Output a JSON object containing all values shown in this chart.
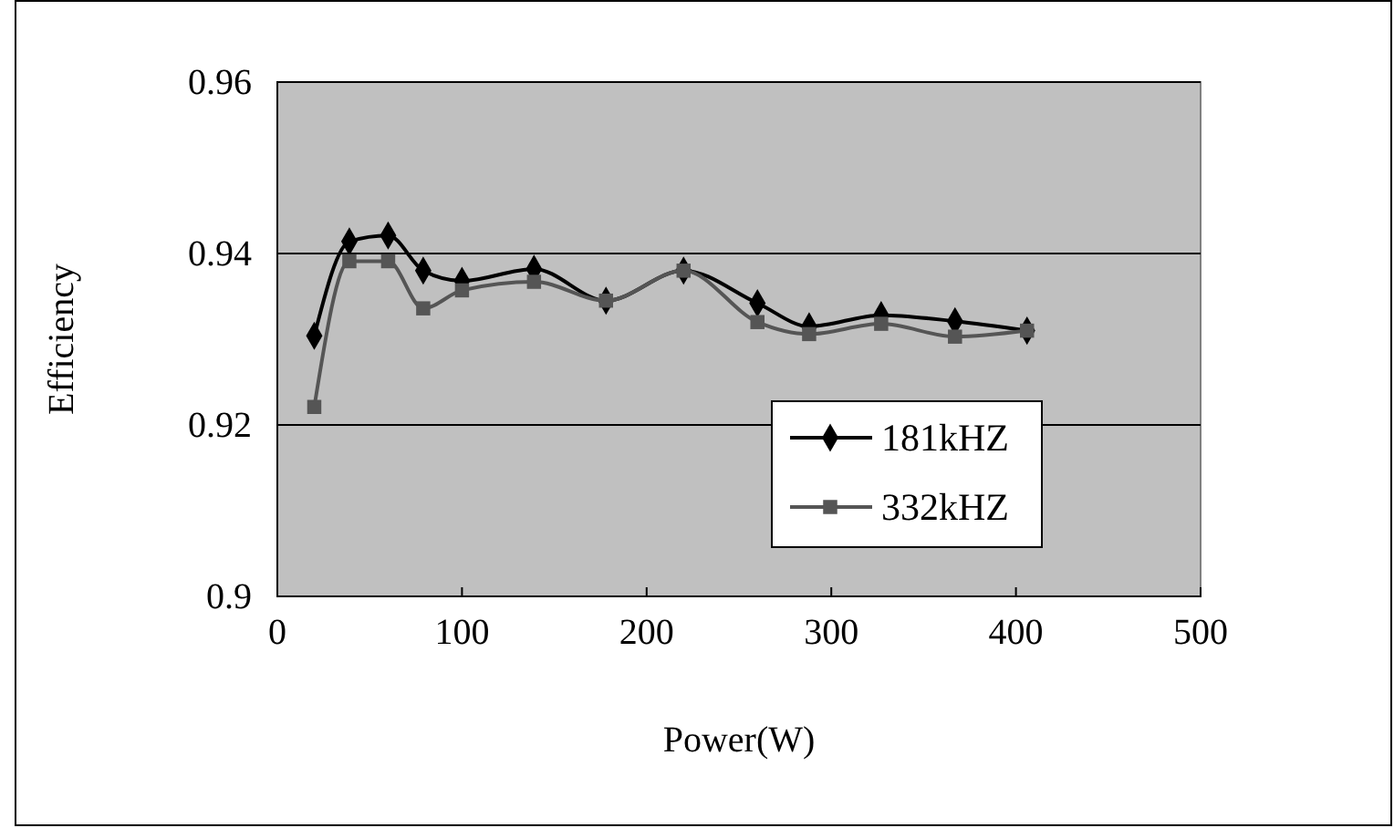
{
  "chart_data": {
    "type": "line",
    "xlabel": "Power(W)",
    "ylabel": "Efficiency",
    "xlim": [
      0,
      500
    ],
    "xticks": [
      0,
      100,
      200,
      300,
      400,
      500
    ],
    "ylim": [
      0.9,
      0.96
    ],
    "yticks": [
      0.9,
      0.92,
      0.94,
      0.96
    ],
    "grid": "y",
    "legend": "bottom right",
    "line_style": "solid",
    "series": [
      {
        "name": "181kHZ",
        "color": "#000000",
        "marker": "diamond",
        "x": [
          20,
          39,
          60,
          79,
          100,
          139,
          178,
          220,
          260,
          288,
          327,
          367,
          406
        ],
        "values": [
          0.9304,
          0.9414,
          0.9421,
          0.938,
          0.9368,
          0.9382,
          0.9345,
          0.938,
          0.9342,
          0.9315,
          0.9328,
          0.9321,
          0.931
        ]
      },
      {
        "name": "332kHZ",
        "color": "#555555",
        "marker": "square",
        "x": [
          20,
          39,
          60,
          79,
          100,
          139,
          178,
          220,
          260,
          288,
          327,
          367,
          406
        ],
        "values": [
          0.9221,
          0.9391,
          0.9391,
          0.9336,
          0.9357,
          0.9367,
          0.9345,
          0.938,
          0.932,
          0.9306,
          0.9318,
          0.9303,
          0.931
        ]
      }
    ]
  }
}
